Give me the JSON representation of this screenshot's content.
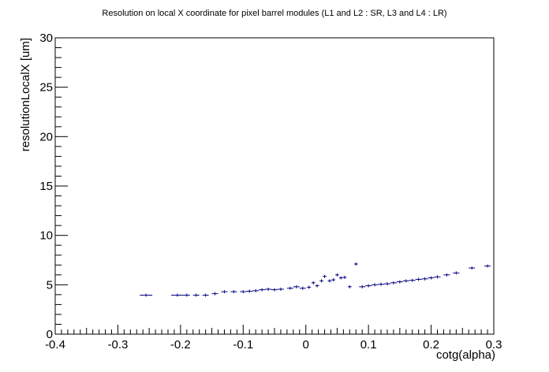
{
  "chart_data": {
    "type": "scatter",
    "title": "Resolution on local X coordinate for pixel barrel modules (L1 and L2 : SR, L3 and L4 : LR)",
    "xlabel": "cotg(alpha)",
    "ylabel": "resolutionLocalX [um]",
    "xlim": [
      -0.4,
      0.3
    ],
    "ylim": [
      0,
      30
    ],
    "x_ticks": [
      "-0.4",
      "-0.3",
      "-0.2",
      "-0.1",
      "0",
      "0.1",
      "0.2",
      "0.3"
    ],
    "y_ticks": [
      "0",
      "5",
      "10",
      "15",
      "20",
      "25",
      "30"
    ],
    "grid": false,
    "marker_color": "#000080",
    "series": [
      {
        "x": [
          -0.255,
          -0.205,
          -0.19,
          -0.175,
          -0.16,
          -0.145,
          -0.13,
          -0.115,
          -0.1,
          -0.09,
          -0.08,
          -0.07,
          -0.06,
          -0.05,
          -0.04,
          -0.025,
          -0.015,
          -0.005,
          0.005,
          0.012,
          0.018,
          0.025,
          0.03,
          0.038,
          0.044,
          0.05,
          0.056,
          0.062,
          0.07,
          0.08,
          0.09,
          0.1,
          0.11,
          0.12,
          0.13,
          0.14,
          0.15,
          0.16,
          0.17,
          0.18,
          0.19,
          0.2,
          0.21,
          0.225,
          0.24,
          0.265,
          0.29
        ],
        "y": [
          3.95,
          3.95,
          3.95,
          3.95,
          3.95,
          4.1,
          4.3,
          4.3,
          4.3,
          4.35,
          4.4,
          4.5,
          4.55,
          4.5,
          4.55,
          4.65,
          4.8,
          4.65,
          4.75,
          5.2,
          4.9,
          5.4,
          5.85,
          5.4,
          5.5,
          6.0,
          5.7,
          5.75,
          4.8,
          7.1,
          4.8,
          4.9,
          5.0,
          5.05,
          5.1,
          5.2,
          5.3,
          5.4,
          5.45,
          5.55,
          5.6,
          5.7,
          5.8,
          6.0,
          6.2,
          6.7,
          6.9
        ],
        "xerr": [
          0.01,
          0.01,
          0.005,
          0.005,
          0.005,
          0.005,
          0.005,
          0.005,
          0.005,
          0.005,
          0.005,
          0.005,
          0.005,
          0.005,
          0.005,
          0.005,
          0.005,
          0.005,
          0.003,
          0.003,
          0.003,
          0.003,
          0.003,
          0.003,
          0.003,
          0.003,
          0.003,
          0.003,
          0.003,
          0.003,
          0.005,
          0.005,
          0.005,
          0.005,
          0.005,
          0.005,
          0.005,
          0.005,
          0.005,
          0.005,
          0.005,
          0.005,
          0.005,
          0.005,
          0.005,
          0.005,
          0.005
        ]
      }
    ]
  }
}
